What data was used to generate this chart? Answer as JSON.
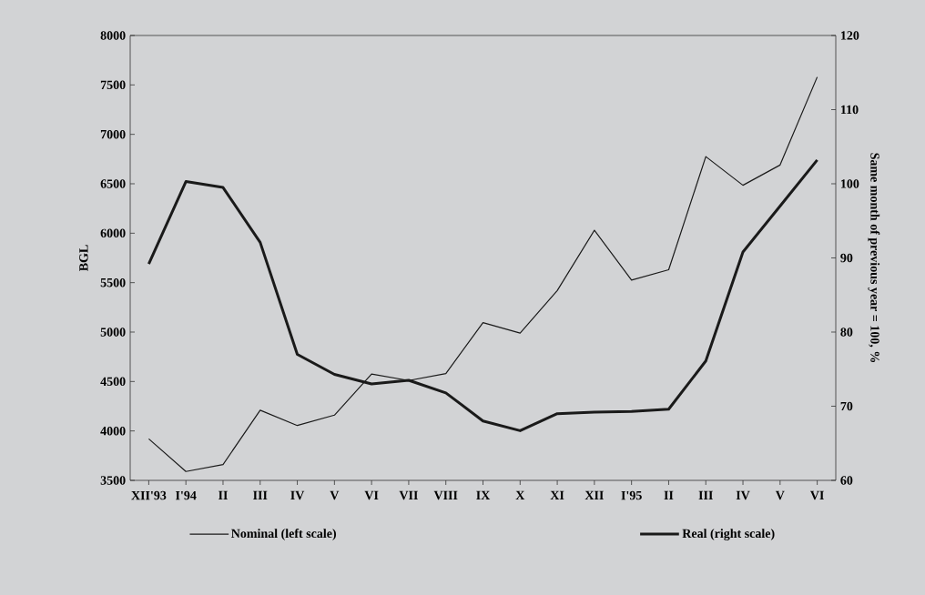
{
  "chart_data": {
    "type": "line",
    "xlabel": null,
    "ylabel": "BGL",
    "y2label": "Same month of previous year = 100, %",
    "categories": [
      "XII'93",
      "I'94",
      "II",
      "III",
      "IV",
      "V",
      "VI",
      "VII",
      "VIII",
      "IX",
      "X",
      "XI",
      "XII",
      "I'95",
      "II",
      "III",
      "IV",
      "V",
      "VI"
    ],
    "series": [
      {
        "name": "Nominal (left scale)",
        "color": "#1a1a1a",
        "axis": "y",
        "values": [
          3920,
          3590,
          3660,
          4210,
          4055,
          4160,
          4575,
          4510,
          4580,
          5095,
          4990,
          5420,
          6030,
          5525,
          5630,
          6775,
          6485,
          6690,
          7580
        ]
      },
      {
        "name": "Real (right scale)",
        "color": "#1a1a1a",
        "axis": "y2",
        "values": [
          89.2,
          100.3,
          99.5,
          92.1,
          77,
          74.3,
          73,
          73.5,
          71.8,
          68,
          66.7,
          69,
          69.2,
          69.3,
          69.6,
          76.1,
          90.8,
          97,
          103.2
        ]
      }
    ],
    "ylim": [
      3500,
      8000
    ],
    "yticks": [
      3500,
      4000,
      4500,
      5000,
      5500,
      6000,
      6500,
      7000,
      7500,
      8000
    ],
    "y2lim": [
      60,
      120
    ],
    "y2ticks": [
      60,
      70,
      80,
      90,
      100,
      110,
      120
    ],
    "grid": false,
    "legend": "bottom",
    "marker": "none",
    "line_style": "solid"
  }
}
